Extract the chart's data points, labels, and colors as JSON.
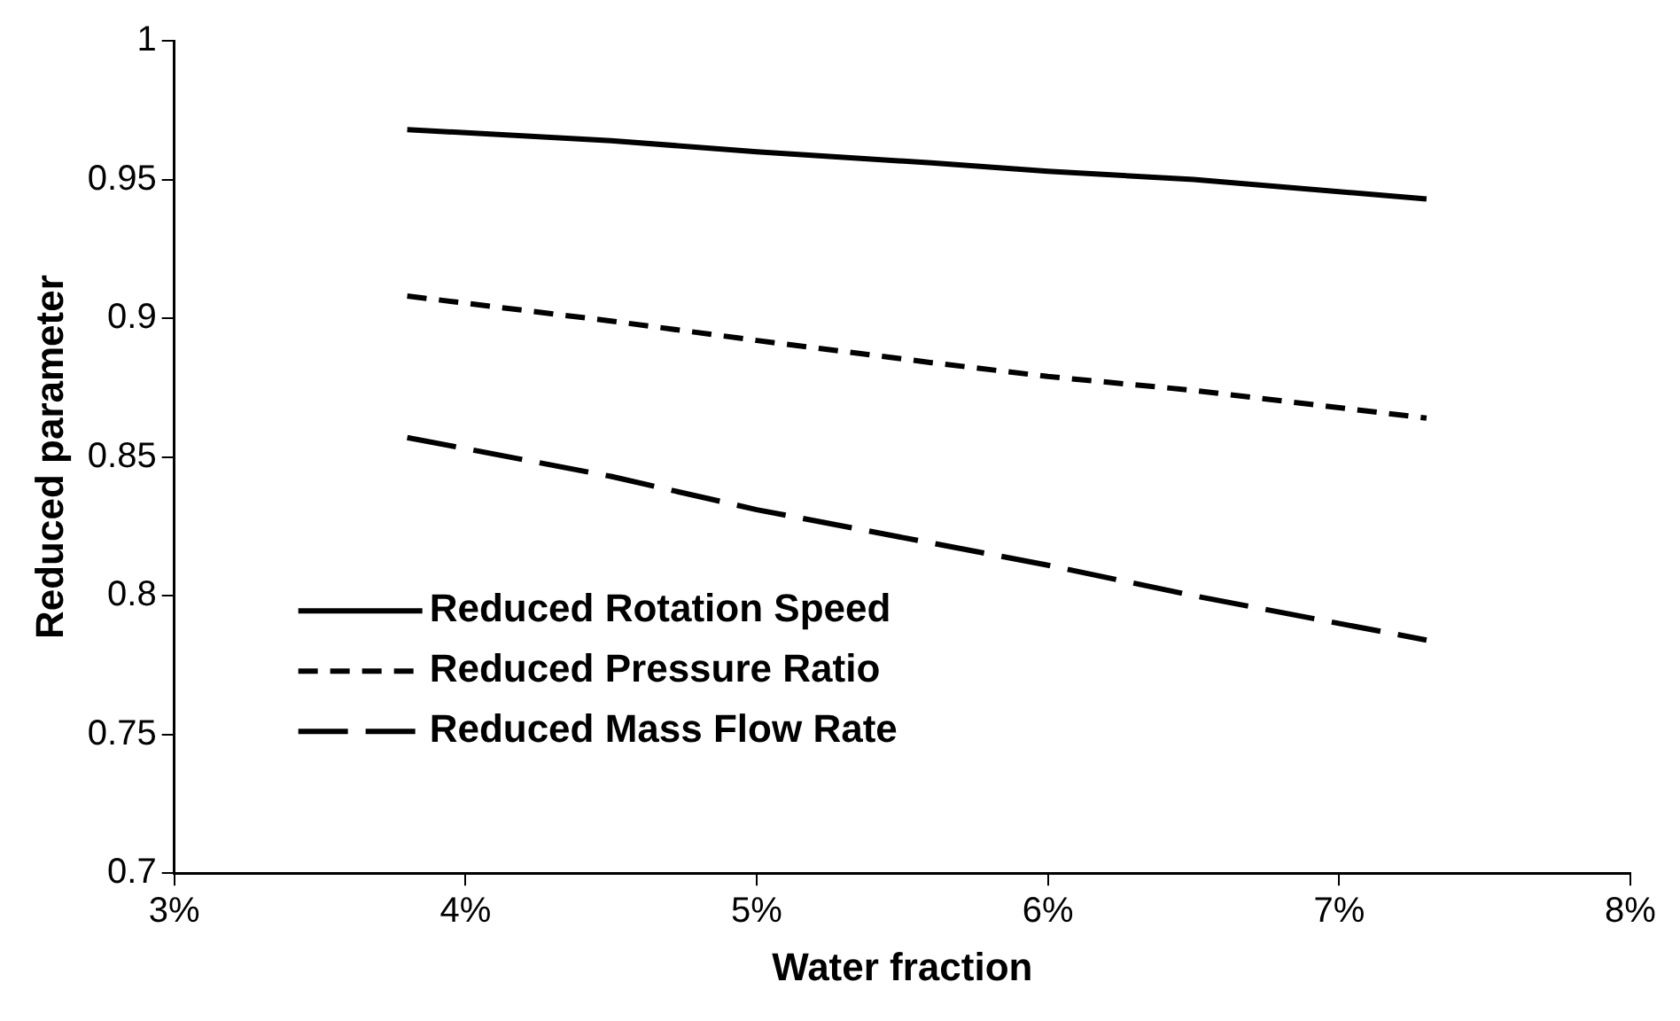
{
  "chart_data": {
    "type": "line",
    "xlabel": "Water fraction",
    "ylabel": "Reduced parameter",
    "x": [
      3.8,
      4.5,
      5.0,
      5.6,
      6.0,
      6.5,
      7.3
    ],
    "series": [
      {
        "name": "Reduced Rotation Speed",
        "color": "#000000",
        "line_style": "solid",
        "values": [
          0.968,
          0.964,
          0.96,
          0.956,
          0.953,
          0.95,
          0.943
        ]
      },
      {
        "name": "Reduced Pressure Ratio",
        "color": "#000000",
        "line_style": "dashed",
        "values": [
          0.908,
          0.899,
          0.892,
          0.884,
          0.879,
          0.874,
          0.864
        ]
      },
      {
        "name": "Reduced Mass Flow Rate",
        "color": "#000000",
        "line_style": "dashed",
        "values": [
          0.857,
          0.843,
          0.831,
          0.819,
          0.811,
          0.8,
          0.784
        ]
      }
    ],
    "xlim": [
      3,
      8
    ],
    "xticks": [
      {
        "value": 3,
        "label": "3%"
      },
      {
        "value": 4,
        "label": "4%"
      },
      {
        "value": 5,
        "label": "5%"
      },
      {
        "value": 6,
        "label": "6%"
      },
      {
        "value": 7,
        "label": "7%"
      },
      {
        "value": 8,
        "label": "8%"
      }
    ],
    "ylim": [
      0.7,
      1
    ],
    "yticks": [
      0.7,
      0.75,
      0.8,
      0.85,
      0.9,
      0.95,
      1
    ],
    "grid": false,
    "legend": "bottom left",
    "marker": "none"
  }
}
